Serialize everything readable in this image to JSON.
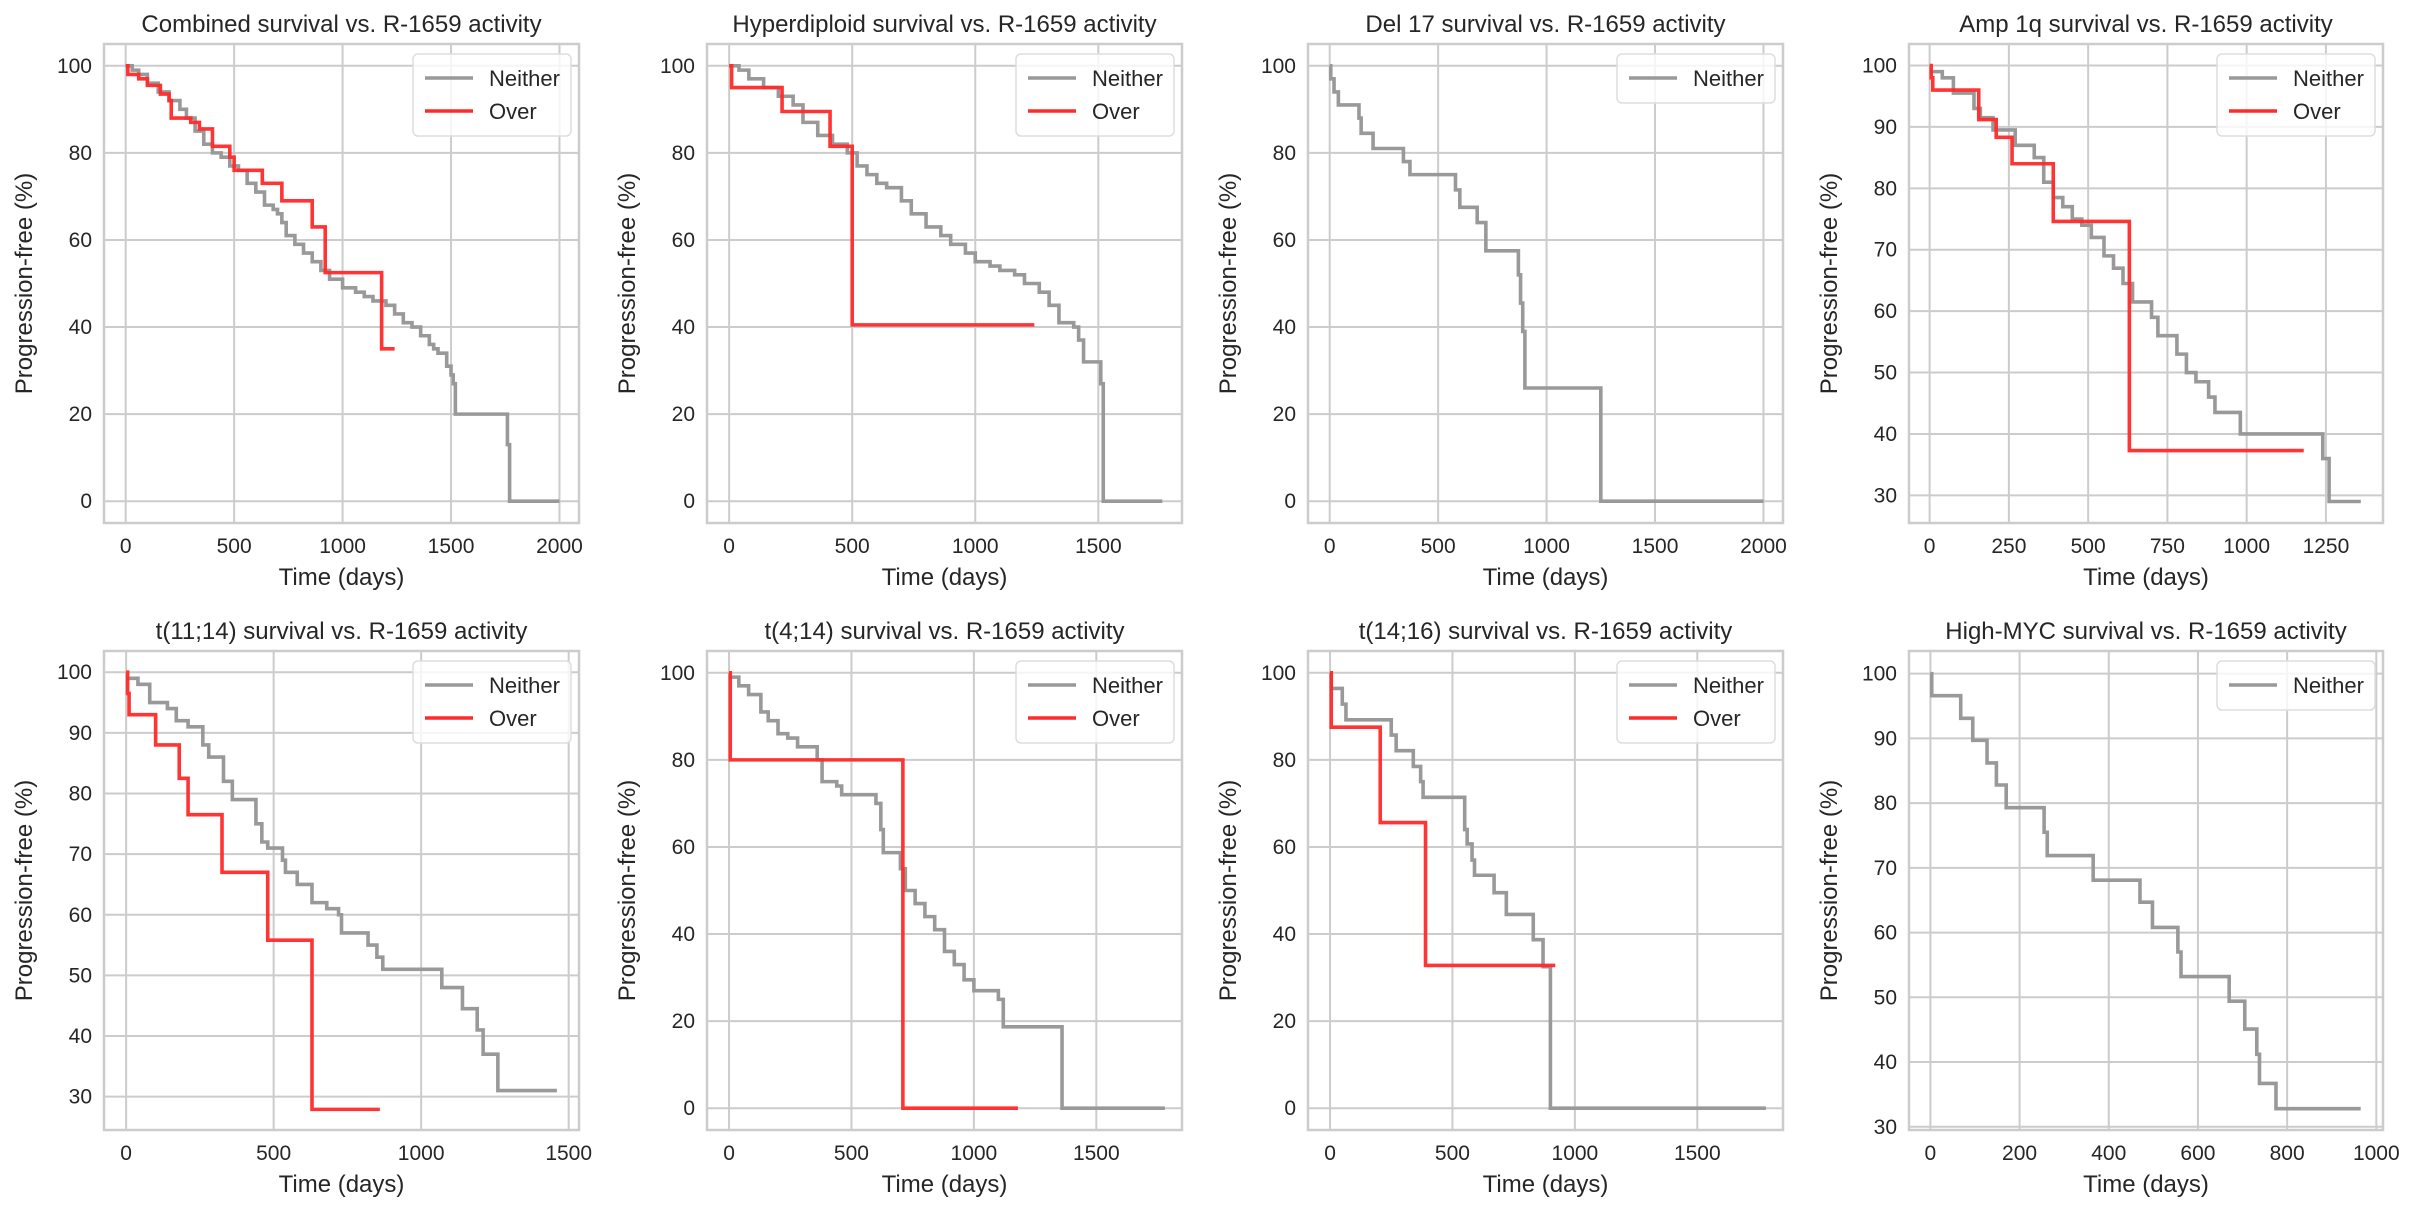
{
  "figure": {
    "panel_count": 8,
    "layout": "2 rows x 4 columns"
  },
  "chart_data": [
    {
      "type": "line",
      "step": true,
      "title": "Combined survival vs. R-1659 activity",
      "xlabel": "Time (days)",
      "ylabel": "Progression-free (%)",
      "xlim": [
        -100,
        2090
      ],
      "ylim": [
        -5,
        105
      ],
      "xticks": [
        0,
        500,
        1000,
        1500,
        2000
      ],
      "yticks": [
        0,
        20,
        40,
        60,
        80,
        100
      ],
      "grid": true,
      "legend": {
        "placement": "top-right",
        "entries": [
          "Neither",
          "Over"
        ]
      },
      "series": [
        {
          "name": "Neither",
          "color": "#999999",
          "x": [
            0,
            30,
            60,
            100,
            150,
            200,
            250,
            280,
            320,
            360,
            400,
            440,
            480,
            520,
            560,
            600,
            640,
            680,
            700,
            720,
            740,
            780,
            820,
            860,
            900,
            940,
            1000,
            1060,
            1100,
            1140,
            1200,
            1240,
            1280,
            1320,
            1360,
            1400,
            1420,
            1440,
            1480,
            1500,
            1510,
            1520,
            1760,
            1770,
            2000
          ],
          "y": [
            100,
            99,
            98,
            96,
            94,
            92,
            90,
            88,
            85,
            82,
            80,
            79,
            77,
            76,
            73,
            71,
            68,
            67,
            66,
            64,
            61,
            59,
            57,
            55,
            53,
            51,
            49,
            48,
            47,
            46,
            45,
            43,
            41,
            40,
            38,
            36,
            35,
            34,
            31,
            29,
            27,
            20,
            13,
            0,
            0
          ]
        },
        {
          "name": "Over",
          "color": "#ff2a2a",
          "x": [
            0,
            10,
            60,
            100,
            160,
            200,
            210,
            300,
            340,
            400,
            480,
            500,
            630,
            720,
            860,
            920,
            1180,
            1240
          ],
          "y": [
            100,
            98,
            97,
            95.5,
            93.5,
            92,
            88,
            87,
            85.5,
            81.5,
            79,
            76,
            73,
            69,
            63,
            52.5,
            35,
            35
          ]
        }
      ]
    },
    {
      "type": "line",
      "step": true,
      "title": "Hyperdiploid survival vs. R-1659 activity",
      "xlabel": "Time (days)",
      "ylabel": "Progression-free (%)",
      "xlim": [
        -90,
        1840
      ],
      "ylim": [
        -5,
        105
      ],
      "xticks": [
        0,
        500,
        1000,
        1500
      ],
      "yticks": [
        0,
        20,
        40,
        60,
        80,
        100
      ],
      "grid": true,
      "legend": {
        "placement": "top-right",
        "entries": [
          "Neither",
          "Over"
        ]
      },
      "series": [
        {
          "name": "Neither",
          "color": "#999999",
          "x": [
            0,
            40,
            80,
            140,
            200,
            260,
            300,
            360,
            420,
            480,
            520,
            560,
            600,
            640,
            700,
            740,
            800,
            860,
            900,
            960,
            1000,
            1060,
            1100,
            1160,
            1200,
            1260,
            1300,
            1340,
            1400,
            1420,
            1440,
            1500,
            1510,
            1520,
            1760
          ],
          "y": [
            100,
            99,
            97,
            95,
            93,
            91,
            87,
            84,
            82,
            80,
            77,
            75,
            73,
            72,
            69,
            66,
            63,
            61,
            59,
            57,
            55,
            54,
            53,
            52,
            50,
            48,
            45,
            41,
            40,
            37,
            32,
            32,
            27,
            0,
            0
          ]
        },
        {
          "name": "Over",
          "color": "#ff2a2a",
          "x": [
            0,
            10,
            215,
            410,
            500,
            1240
          ],
          "y": [
            100,
            95,
            89.5,
            81.5,
            40.5,
            40.5
          ]
        }
      ]
    },
    {
      "type": "line",
      "step": true,
      "title": "Del 17 survival vs. R-1659 activity",
      "xlabel": "Time (days)",
      "ylabel": "Progression-free (%)",
      "xlim": [
        -100,
        2090
      ],
      "ylim": [
        -5,
        105
      ],
      "xticks": [
        0,
        500,
        1000,
        1500,
        2000
      ],
      "yticks": [
        0,
        20,
        40,
        60,
        80,
        100
      ],
      "grid": true,
      "legend": {
        "placement": "top-right",
        "entries": [
          "Neither"
        ]
      },
      "series": [
        {
          "name": "Neither",
          "color": "#999999",
          "x": [
            0,
            5,
            20,
            40,
            135,
            145,
            200,
            340,
            370,
            580,
            600,
            680,
            720,
            870,
            880,
            890,
            900,
            910,
            1250,
            2000
          ],
          "y": [
            100,
            97,
            94,
            91,
            88,
            84.5,
            81,
            78,
            75,
            71.5,
            67.5,
            64,
            57.5,
            52,
            45.5,
            39,
            26,
            26,
            0,
            0
          ]
        }
      ]
    },
    {
      "type": "line",
      "step": true,
      "title": "Amp 1q survival vs. R-1659 activity",
      "xlabel": "Time (days)",
      "ylabel": "Progression-free (%)",
      "xlim": [
        -65,
        1430
      ],
      "ylim": [
        25.5,
        103.5
      ],
      "xticks": [
        0,
        250,
        500,
        750,
        1000,
        1250
      ],
      "yticks": [
        30,
        40,
        50,
        60,
        70,
        80,
        90,
        100
      ],
      "grid": true,
      "legend": {
        "placement": "top-right",
        "entries": [
          "Neither",
          "Over"
        ]
      },
      "series": [
        {
          "name": "Neither",
          "color": "#999999",
          "x": [
            0,
            40,
            75,
            140,
            160,
            200,
            270,
            330,
            360,
            390,
            420,
            450,
            480,
            510,
            550,
            580,
            610,
            640,
            700,
            720,
            780,
            810,
            840,
            880,
            900,
            980,
            1240,
            1260,
            1360
          ],
          "y": [
            99,
            98,
            95.5,
            93,
            91.5,
            89.5,
            87,
            85,
            81,
            78.5,
            77,
            75,
            74,
            72,
            69,
            67,
            64.5,
            61.5,
            59,
            56,
            53,
            50,
            48.5,
            46,
            43.5,
            40,
            36,
            29,
            29
          ]
        },
        {
          "name": "Over",
          "color": "#ff2a2a",
          "x": [
            0,
            5,
            10,
            155,
            210,
            260,
            390,
            630,
            1180
          ],
          "y": [
            100,
            98,
            96,
            91.2,
            88.3,
            84,
            74.6,
            37.3,
            37.3
          ]
        }
      ]
    },
    {
      "type": "line",
      "step": true,
      "title": "t(11;14) survival vs. R-1659 activity",
      "xlabel": "Time (days)",
      "ylabel": "Progression-free (%)",
      "xlim": [
        -75,
        1535
      ],
      "ylim": [
        24.5,
        103.5
      ],
      "xticks": [
        0,
        500,
        1000,
        1500
      ],
      "yticks": [
        30,
        40,
        50,
        60,
        70,
        80,
        90,
        100
      ],
      "grid": true,
      "legend": {
        "placement": "top-right",
        "entries": [
          "Neither",
          "Over"
        ]
      },
      "series": [
        {
          "name": "Neither",
          "color": "#999999",
          "x": [
            0,
            40,
            80,
            140,
            170,
            210,
            260,
            280,
            330,
            360,
            400,
            440,
            460,
            480,
            530,
            540,
            580,
            630,
            680,
            720,
            730,
            820,
            850,
            870,
            1070,
            1140,
            1190,
            1210,
            1260,
            1460
          ],
          "y": [
            99,
            98,
            95,
            94,
            92,
            91,
            88,
            86,
            82,
            79,
            79,
            75,
            72,
            71,
            69,
            67,
            65,
            62,
            61,
            60,
            57,
            55,
            53,
            51,
            48,
            44.5,
            41,
            37,
            31,
            31
          ]
        },
        {
          "name": "Over",
          "color": "#ff2a2a",
          "x": [
            0,
            5,
            10,
            100,
            180,
            210,
            325,
            480,
            630,
            860
          ],
          "y": [
            100,
            96.5,
            93,
            88,
            82.5,
            76.5,
            67,
            55.8,
            27.9,
            27.9
          ]
        }
      ]
    },
    {
      "type": "line",
      "step": true,
      "title": "t(4;14) survival vs. R-1659 activity",
      "xlabel": "Time (days)",
      "ylabel": "Progression-free (%)",
      "xlim": [
        -90,
        1850
      ],
      "ylim": [
        -5,
        105
      ],
      "xticks": [
        0,
        500,
        1000,
        1500
      ],
      "yticks": [
        0,
        20,
        40,
        60,
        80,
        100
      ],
      "grid": true,
      "legend": {
        "placement": "top-right",
        "entries": [
          "Neither",
          "Over"
        ]
      },
      "series": [
        {
          "name": "Neither",
          "color": "#999999",
          "x": [
            0,
            40,
            80,
            130,
            160,
            200,
            240,
            280,
            360,
            380,
            440,
            460,
            600,
            620,
            630,
            700,
            720,
            760,
            800,
            840,
            880,
            920,
            960,
            1000,
            1100,
            1120,
            1360,
            1780
          ],
          "y": [
            99,
            97,
            95,
            91,
            89,
            86,
            85,
            83,
            80,
            75,
            74,
            72,
            70,
            64,
            58.7,
            55,
            50,
            47,
            44,
            41,
            36,
            33,
            29.5,
            27,
            25,
            18.7,
            0,
            0
          ]
        },
        {
          "name": "Over",
          "color": "#ff2a2a",
          "x": [
            0,
            5,
            710,
            1180
          ],
          "y": [
            100,
            80,
            0,
            0
          ]
        }
      ]
    },
    {
      "type": "line",
      "step": true,
      "title": "t(14;16) survival vs. R-1659 activity",
      "xlabel": "Time (days)",
      "ylabel": "Progression-free (%)",
      "xlim": [
        -90,
        1850
      ],
      "ylim": [
        -5,
        105
      ],
      "xticks": [
        0,
        500,
        1000,
        1500
      ],
      "yticks": [
        0,
        20,
        40,
        60,
        80,
        100
      ],
      "grid": true,
      "legend": {
        "placement": "top-right",
        "entries": [
          "Neither",
          "Over"
        ]
      },
      "series": [
        {
          "name": "Neither",
          "color": "#999999",
          "x": [
            0,
            5,
            50,
            65,
            250,
            270,
            340,
            370,
            380,
            550,
            560,
            580,
            590,
            670,
            720,
            830,
            870,
            900,
            1780
          ],
          "y": [
            100,
            96.4,
            92.8,
            89.2,
            85.7,
            82.1,
            78.5,
            75,
            71.4,
            64,
            60.7,
            57,
            53.5,
            49.5,
            44.5,
            38.7,
            32.5,
            0,
            0
          ]
        },
        {
          "name": "Over",
          "color": "#ff2a2a",
          "x": [
            0,
            5,
            205,
            390,
            920
          ],
          "y": [
            100,
            87.5,
            65.6,
            32.8,
            32.8
          ]
        }
      ]
    },
    {
      "type": "line",
      "step": true,
      "title": "High-MYC survival vs. R-1659 activity",
      "xlabel": "Time (days)",
      "ylabel": "Progression-free (%)",
      "xlim": [
        -48,
        1015
      ],
      "ylim": [
        29.5,
        103.5
      ],
      "xticks": [
        0,
        200,
        400,
        600,
        800,
        1000
      ],
      "yticks": [
        30,
        40,
        50,
        60,
        70,
        80,
        90,
        100
      ],
      "grid": true,
      "legend": {
        "placement": "top-right",
        "entries": [
          "Neither"
        ]
      },
      "series": [
        {
          "name": "Neither",
          "color": "#999999",
          "x": [
            0,
            3,
            68,
            95,
            127,
            148,
            170,
            255,
            262,
            365,
            470,
            498,
            555,
            562,
            670,
            705,
            732,
            738,
            775,
            965
          ],
          "y": [
            100,
            96.6,
            93.1,
            89.7,
            86.2,
            82.8,
            79.3,
            75.5,
            71.9,
            68.1,
            64.7,
            60.8,
            57,
            53.2,
            49.4,
            45.1,
            41.2,
            36.7,
            32.8,
            32.8
          ]
        }
      ]
    }
  ]
}
